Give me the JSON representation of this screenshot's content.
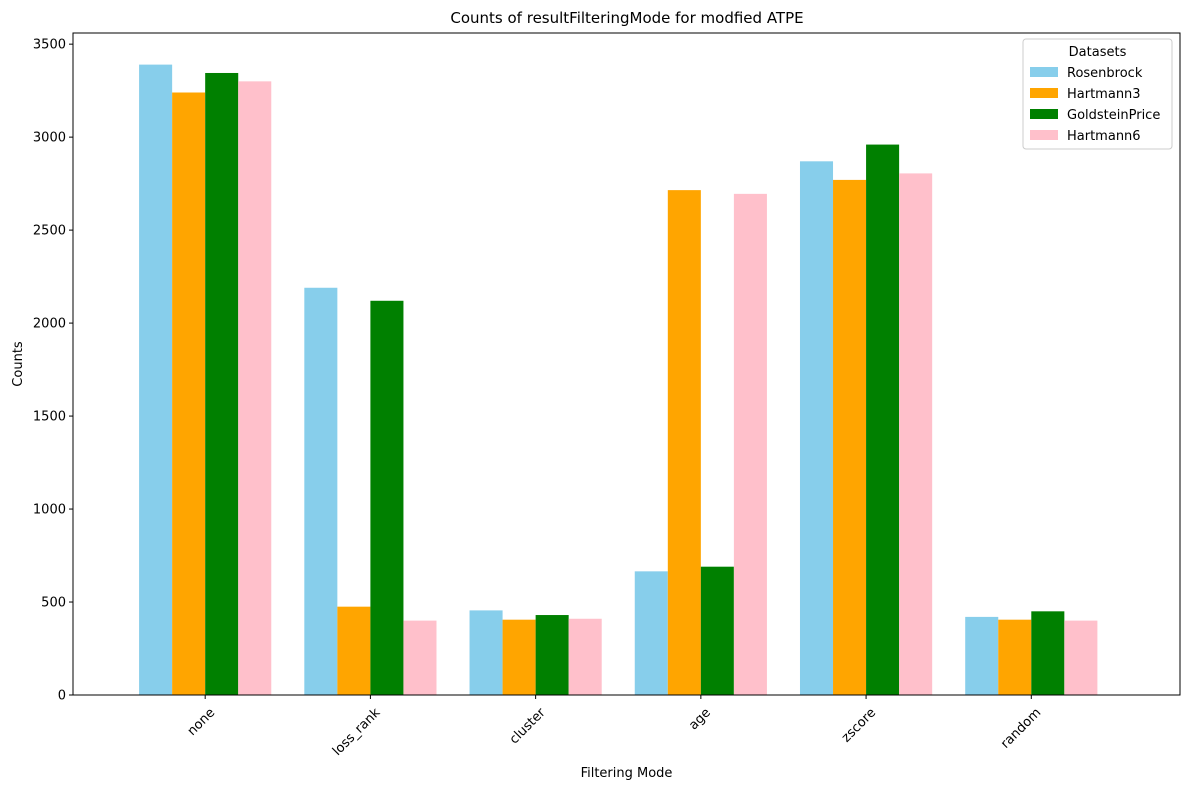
{
  "chart_data": {
    "type": "bar",
    "title": "Counts of resultFilteringMode for modfied ATPE",
    "xlabel": "Filtering Mode",
    "ylabel": "Counts",
    "categories": [
      "none",
      "loss_rank",
      "cluster",
      "age",
      "zscore",
      "random"
    ],
    "ylim": [
      0,
      3560
    ],
    "yticks": [
      0,
      500,
      1000,
      1500,
      2000,
      2500,
      3000,
      3500
    ],
    "grid": false,
    "legend": {
      "title": "Datasets",
      "placement": "top-right"
    },
    "series": [
      {
        "name": "Rosenbrock",
        "color": "#87ceeb",
        "values": [
          3390,
          2190,
          455,
          665,
          2870,
          420
        ]
      },
      {
        "name": "Hartmann3",
        "color": "#ffa500",
        "values": [
          3240,
          475,
          405,
          2715,
          2770,
          405
        ]
      },
      {
        "name": "GoldsteinPrice",
        "color": "#008000",
        "values": [
          3345,
          2120,
          430,
          690,
          2960,
          450
        ]
      },
      {
        "name": "Hartmann6",
        "color": "#ffc0cb",
        "values": [
          3300,
          400,
          410,
          2695,
          2805,
          400
        ]
      }
    ]
  }
}
